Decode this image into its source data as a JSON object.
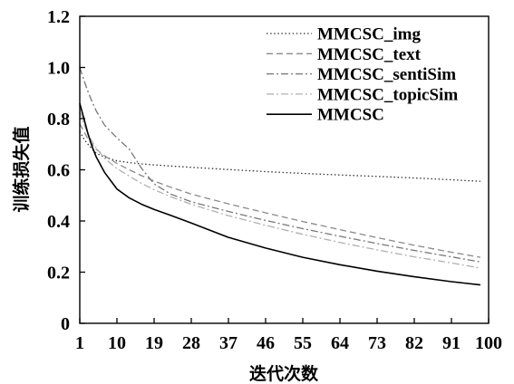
{
  "chart_data": {
    "type": "line",
    "xlabel": "迭代次数",
    "ylabel": "训练损失值",
    "xlim": [
      1,
      100
    ],
    "ylim": [
      0,
      1.2
    ],
    "xticks": [
      1,
      10,
      19,
      28,
      37,
      46,
      55,
      64,
      73,
      82,
      91,
      100
    ],
    "yticks": [
      0,
      0.2,
      0.4,
      0.6,
      0.8,
      1.0,
      1.2
    ],
    "ytick_labels": [
      "0",
      "0.2",
      "0.4",
      "0.6",
      "0.8",
      "1.0",
      "1.2"
    ],
    "grid": false,
    "legend_position": "top-right",
    "x": [
      1,
      2,
      3,
      4,
      5,
      7,
      10,
      13,
      16,
      19,
      23,
      28,
      37,
      46,
      55,
      64,
      73,
      82,
      91,
      98
    ],
    "series": [
      {
        "name": "MMCSC_img",
        "line_style": "dotted",
        "color": "#333333",
        "values": [
          0.75,
          0.72,
          0.7,
          0.68,
          0.665,
          0.65,
          0.635,
          0.628,
          0.623,
          0.619,
          0.615,
          0.61,
          0.601,
          0.593,
          0.586,
          0.58,
          0.574,
          0.568,
          0.561,
          0.555
        ]
      },
      {
        "name": "MMCSC_text",
        "line_style": "dashed",
        "color": "#8a8a8a",
        "values": [
          0.78,
          0.75,
          0.72,
          0.7,
          0.68,
          0.655,
          0.625,
          0.6,
          0.577,
          0.556,
          0.532,
          0.505,
          0.467,
          0.432,
          0.398,
          0.366,
          0.335,
          0.305,
          0.278,
          0.258
        ]
      },
      {
        "name": "MMCSC_sentiSim",
        "line_style": "dashdot",
        "color": "#777777",
        "values": [
          1.0,
          0.95,
          0.905,
          0.865,
          0.83,
          0.775,
          0.725,
          0.68,
          0.605,
          0.545,
          0.505,
          0.475,
          0.437,
          0.402,
          0.37,
          0.34,
          0.312,
          0.285,
          0.26,
          0.24
        ]
      },
      {
        "name": "MMCSC_topicSim",
        "line_style": "dashdot",
        "color": "#b0b0b0",
        "values": [
          0.83,
          0.78,
          0.74,
          0.71,
          0.685,
          0.645,
          0.605,
          0.575,
          0.547,
          0.522,
          0.495,
          0.465,
          0.421,
          0.383,
          0.348,
          0.316,
          0.287,
          0.26,
          0.236,
          0.216
        ]
      },
      {
        "name": "MMCSC",
        "line_style": "solid",
        "color": "#000000",
        "values": [
          0.86,
          0.8,
          0.74,
          0.69,
          0.65,
          0.59,
          0.525,
          0.49,
          0.465,
          0.445,
          0.422,
          0.392,
          0.336,
          0.294,
          0.258,
          0.229,
          0.204,
          0.182,
          0.163,
          0.15
        ]
      }
    ]
  }
}
